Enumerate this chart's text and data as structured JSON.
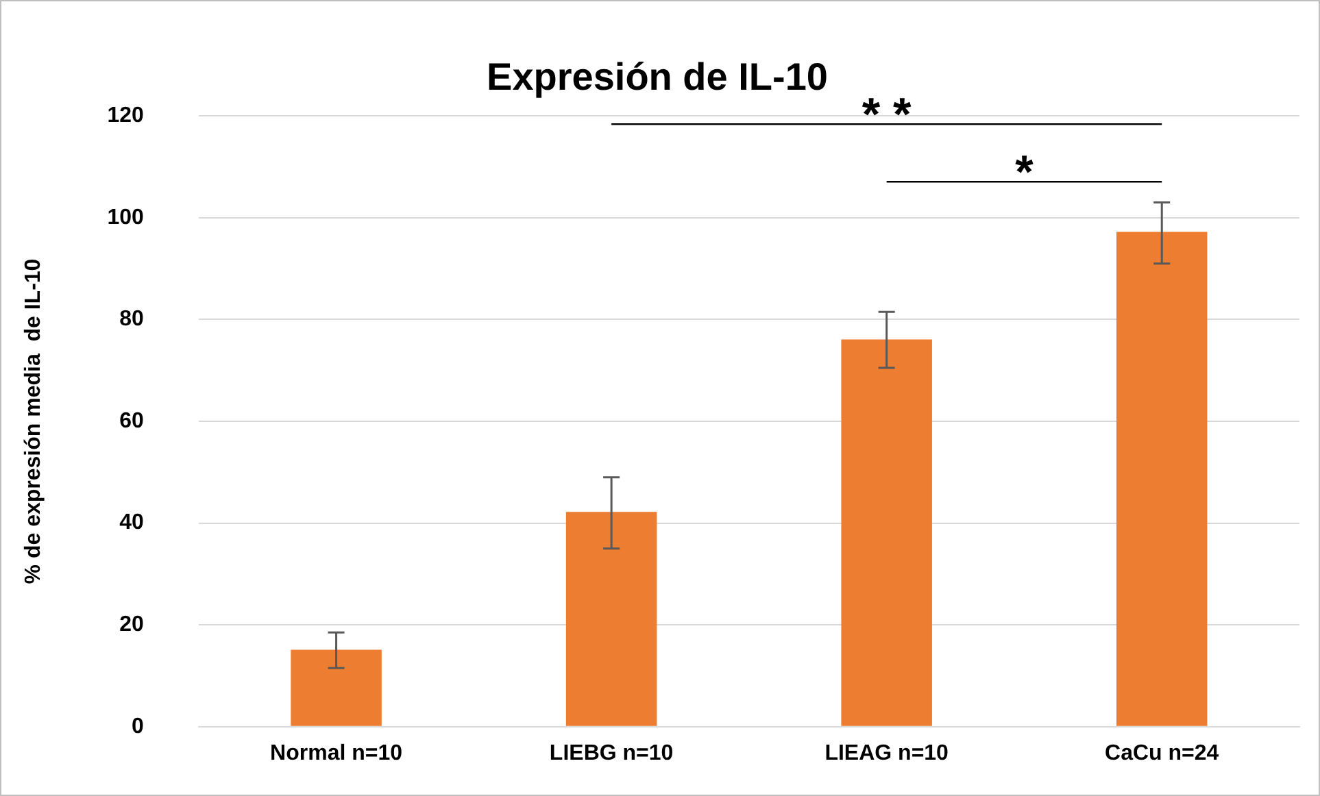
{
  "chart_data": {
    "type": "bar",
    "title": "Expresión de IL-10",
    "ylabel": "% de expresión media  de IL-10",
    "categories": [
      "Normal n=10",
      "LIEBG n=10",
      "LIEAG n=10",
      "CaCu n=24"
    ],
    "values": [
      15.1,
      42.2,
      76.1,
      97.2
    ],
    "color": "#ed7d31",
    "errors": [
      [
        11.5,
        18.5
      ],
      [
        35,
        49
      ],
      [
        70.5,
        81.5
      ],
      [
        91,
        103
      ]
    ],
    "ylim": [
      0,
      120
    ],
    "yticks": [
      0,
      20,
      40,
      60,
      80,
      100,
      120
    ],
    "grid": "y",
    "legend": false,
    "annotations": [
      "* *",
      "*"
    ]
  }
}
